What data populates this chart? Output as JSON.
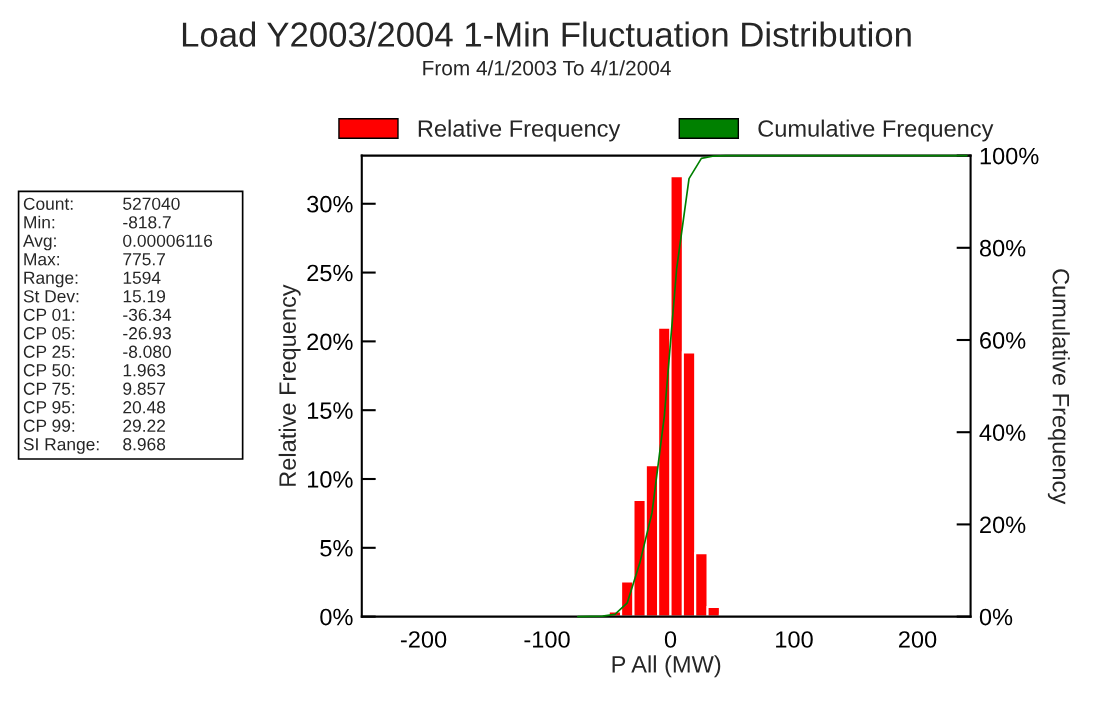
{
  "chart_data": {
    "type": "histogram",
    "title": "Load Y2003/2004 1-Min Fluctuation Distribution",
    "subtitle": "From 4/1/2003 To 4/1/2004",
    "xlabel": "P All (MW)",
    "ylabel": "Relative Frequency",
    "y2label": "Cumulative Frequency",
    "bins": [
      -80,
      -70,
      -60,
      -50,
      -40,
      -30,
      -20,
      -10,
      0,
      10,
      20,
      30,
      40,
      50,
      60,
      70
    ],
    "series": [
      {
        "name": "Relative Frequency",
        "type": "histogram",
        "color": "#ff0000",
        "values": [
          0.02,
          0.03,
          0.05,
          0.37,
          2.56,
          8.47,
          11.0,
          21.0,
          32.0,
          19.2,
          4.6,
          0.7,
          0.15,
          0.08,
          0.03
        ]
      },
      {
        "name": "Cumulative Frequency",
        "type": "line",
        "axis": "y2",
        "color": "#008000",
        "x": [
          -75,
          -55,
          -45,
          -35,
          -25,
          -15,
          -5,
          5,
          15,
          25,
          35,
          45,
          240
        ],
        "values": [
          0,
          0.1,
          0.5,
          3,
          11.5,
          22.5,
          43.5,
          75.5,
          95,
          99.4,
          99.9,
          100,
          100
        ]
      }
    ],
    "xlim": [
      -250,
      243
    ],
    "xticks": [
      -200,
      -100,
      0,
      100,
      200
    ],
    "ylim": [
      0,
      33.5
    ],
    "yticks": [
      {
        "value": 0,
        "label": "0%"
      },
      {
        "value": 5,
        "label": "5%"
      },
      {
        "value": 10,
        "label": "10%"
      },
      {
        "value": 15,
        "label": "15%"
      },
      {
        "value": 20,
        "label": "20%"
      },
      {
        "value": 25,
        "label": "25%"
      },
      {
        "value": 30,
        "label": "30%"
      }
    ],
    "y2lim": [
      0,
      100
    ],
    "y2ticks": [
      {
        "value": 0,
        "label": "0%"
      },
      {
        "value": 20,
        "label": "20%"
      },
      {
        "value": 40,
        "label": "40%"
      },
      {
        "value": 60,
        "label": "60%"
      },
      {
        "value": 80,
        "label": "80%"
      },
      {
        "value": 100,
        "label": "100%"
      }
    ],
    "grid": false,
    "legend": "top",
    "annotations": [
      "Count:\t527040",
      "Min:\t-818.7",
      "Avg:\t0.00006116",
      "Max:\t775.7",
      "Range:\t1594",
      "St Dev:\t15.19",
      "CP 01:\t-36.34",
      "CP 05:\t-26.93",
      "CP 25:\t-8.080",
      "CP 50:\t1.963",
      "CP 75:\t9.857",
      "CP 95:\t20.48",
      "CP 99:\t29.22",
      "SI Range:\t8.968"
    ]
  }
}
